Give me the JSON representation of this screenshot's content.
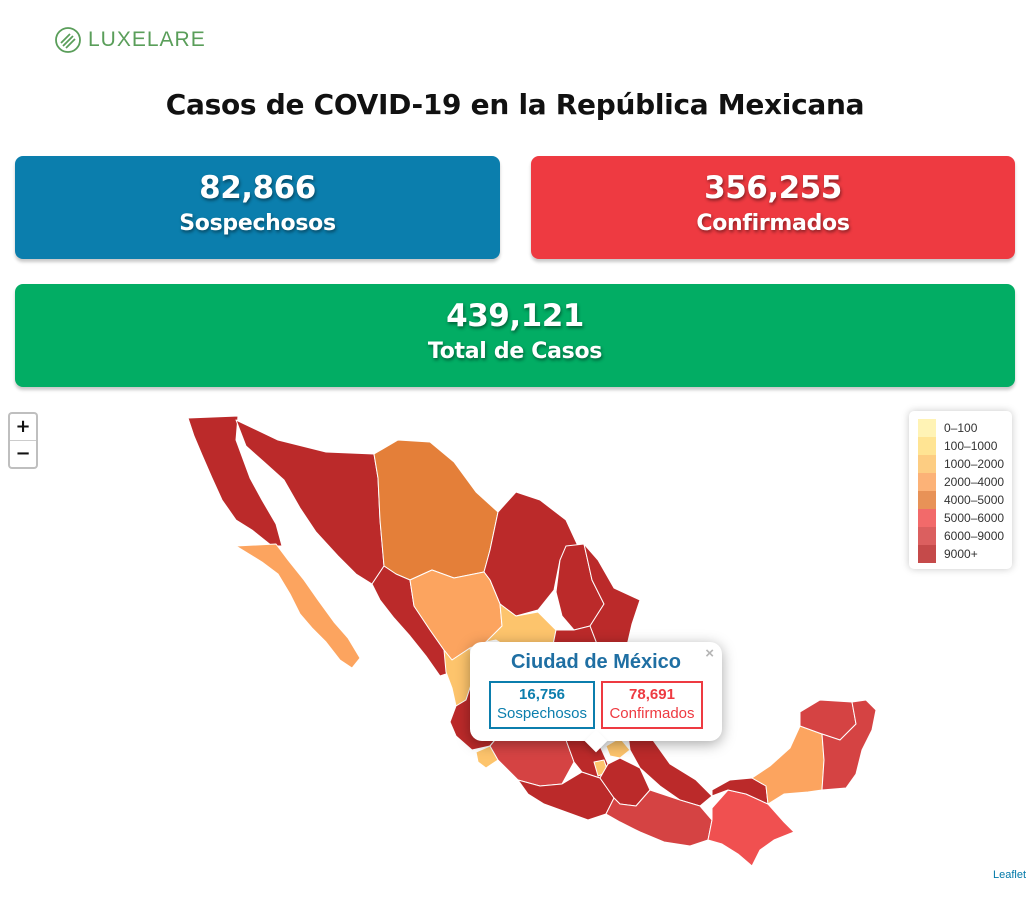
{
  "brand": {
    "name": "LUXELARE",
    "color": "#5a9e5a"
  },
  "title": "Casos de COVID-19 en la República Mexicana",
  "cards": {
    "sospechosos": {
      "value": "82,866",
      "label": "Sospechosos",
      "color": "#0b7ead"
    },
    "confirmados": {
      "value": "356,255",
      "label": "Confirmados",
      "color": "#ee3a41"
    },
    "total": {
      "value": "439,121",
      "label": "Total de Casos",
      "color": "#02ad64"
    }
  },
  "map": {
    "zoom_in": "+",
    "zoom_out": "−",
    "attribution": "Leaflet",
    "legend": [
      {
        "label": "0–100",
        "color": "#fff1a8"
      },
      {
        "label": "100–1000",
        "color": "#ffdf80"
      },
      {
        "label": "1000–2000",
        "color": "#fdc46c"
      },
      {
        "label": "2000–4000",
        "color": "#fca45f"
      },
      {
        "label": "4000–5000",
        "color": "#e47f39"
      },
      {
        "label": "5000–6000",
        "color": "#f05050"
      },
      {
        "label": "6000–9000",
        "color": "#d54343"
      },
      {
        "label": "9000+",
        "color": "#bb2a2a"
      }
    ]
  },
  "popup": {
    "state": "Ciudad de México",
    "close": "×",
    "sospechosos_value": "16,756",
    "sospechosos_label": "Sospechosos",
    "confirmados_value": "78,691",
    "confirmados_label": "Confirmados"
  }
}
